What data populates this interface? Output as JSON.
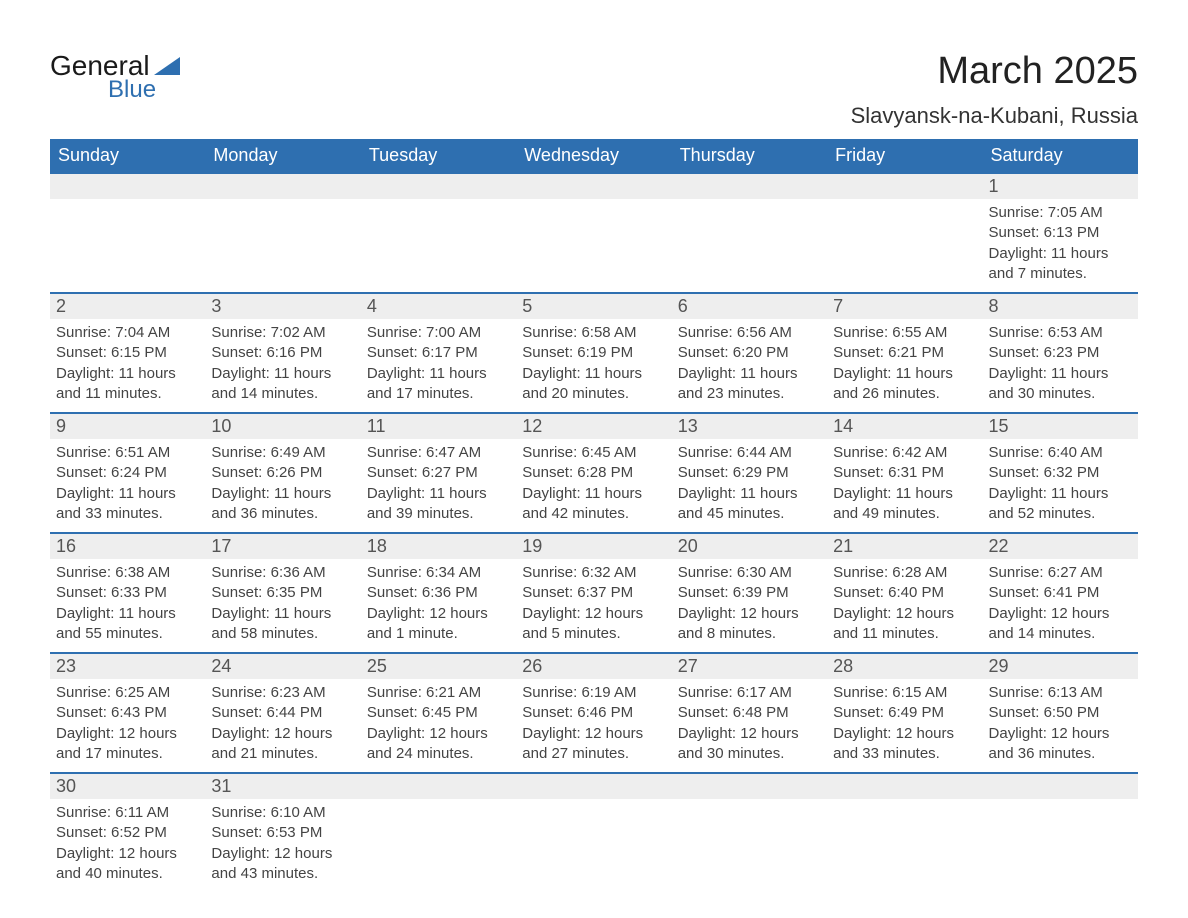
{
  "logo": {
    "text1": "General",
    "text2": "Blue",
    "accent_color": "#2e6fb0"
  },
  "title": "March 2025",
  "location": "Slavyansk-na-Kubani, Russia",
  "colors": {
    "header_bg": "#2e6fb0",
    "header_text": "#ffffff",
    "row_band": "#eeeeee",
    "border": "#2e6fb0",
    "text": "#444444",
    "background": "#ffffff"
  },
  "typography": {
    "title_fontsize": 38,
    "location_fontsize": 22,
    "header_fontsize": 18,
    "daynum_fontsize": 18,
    "body_fontsize": 15
  },
  "weekdays": [
    "Sunday",
    "Monday",
    "Tuesday",
    "Wednesday",
    "Thursday",
    "Friday",
    "Saturday"
  ],
  "weeks": [
    [
      null,
      null,
      null,
      null,
      null,
      null,
      {
        "n": "1",
        "sunrise": "Sunrise: 7:05 AM",
        "sunset": "Sunset: 6:13 PM",
        "daylight": "Daylight: 11 hours and 7 minutes."
      }
    ],
    [
      {
        "n": "2",
        "sunrise": "Sunrise: 7:04 AM",
        "sunset": "Sunset: 6:15 PM",
        "daylight": "Daylight: 11 hours and 11 minutes."
      },
      {
        "n": "3",
        "sunrise": "Sunrise: 7:02 AM",
        "sunset": "Sunset: 6:16 PM",
        "daylight": "Daylight: 11 hours and 14 minutes."
      },
      {
        "n": "4",
        "sunrise": "Sunrise: 7:00 AM",
        "sunset": "Sunset: 6:17 PM",
        "daylight": "Daylight: 11 hours and 17 minutes."
      },
      {
        "n": "5",
        "sunrise": "Sunrise: 6:58 AM",
        "sunset": "Sunset: 6:19 PM",
        "daylight": "Daylight: 11 hours and 20 minutes."
      },
      {
        "n": "6",
        "sunrise": "Sunrise: 6:56 AM",
        "sunset": "Sunset: 6:20 PM",
        "daylight": "Daylight: 11 hours and 23 minutes."
      },
      {
        "n": "7",
        "sunrise": "Sunrise: 6:55 AM",
        "sunset": "Sunset: 6:21 PM",
        "daylight": "Daylight: 11 hours and 26 minutes."
      },
      {
        "n": "8",
        "sunrise": "Sunrise: 6:53 AM",
        "sunset": "Sunset: 6:23 PM",
        "daylight": "Daylight: 11 hours and 30 minutes."
      }
    ],
    [
      {
        "n": "9",
        "sunrise": "Sunrise: 6:51 AM",
        "sunset": "Sunset: 6:24 PM",
        "daylight": "Daylight: 11 hours and 33 minutes."
      },
      {
        "n": "10",
        "sunrise": "Sunrise: 6:49 AM",
        "sunset": "Sunset: 6:26 PM",
        "daylight": "Daylight: 11 hours and 36 minutes."
      },
      {
        "n": "11",
        "sunrise": "Sunrise: 6:47 AM",
        "sunset": "Sunset: 6:27 PM",
        "daylight": "Daylight: 11 hours and 39 minutes."
      },
      {
        "n": "12",
        "sunrise": "Sunrise: 6:45 AM",
        "sunset": "Sunset: 6:28 PM",
        "daylight": "Daylight: 11 hours and 42 minutes."
      },
      {
        "n": "13",
        "sunrise": "Sunrise: 6:44 AM",
        "sunset": "Sunset: 6:29 PM",
        "daylight": "Daylight: 11 hours and 45 minutes."
      },
      {
        "n": "14",
        "sunrise": "Sunrise: 6:42 AM",
        "sunset": "Sunset: 6:31 PM",
        "daylight": "Daylight: 11 hours and 49 minutes."
      },
      {
        "n": "15",
        "sunrise": "Sunrise: 6:40 AM",
        "sunset": "Sunset: 6:32 PM",
        "daylight": "Daylight: 11 hours and 52 minutes."
      }
    ],
    [
      {
        "n": "16",
        "sunrise": "Sunrise: 6:38 AM",
        "sunset": "Sunset: 6:33 PM",
        "daylight": "Daylight: 11 hours and 55 minutes."
      },
      {
        "n": "17",
        "sunrise": "Sunrise: 6:36 AM",
        "sunset": "Sunset: 6:35 PM",
        "daylight": "Daylight: 11 hours and 58 minutes."
      },
      {
        "n": "18",
        "sunrise": "Sunrise: 6:34 AM",
        "sunset": "Sunset: 6:36 PM",
        "daylight": "Daylight: 12 hours and 1 minute."
      },
      {
        "n": "19",
        "sunrise": "Sunrise: 6:32 AM",
        "sunset": "Sunset: 6:37 PM",
        "daylight": "Daylight: 12 hours and 5 minutes."
      },
      {
        "n": "20",
        "sunrise": "Sunrise: 6:30 AM",
        "sunset": "Sunset: 6:39 PM",
        "daylight": "Daylight: 12 hours and 8 minutes."
      },
      {
        "n": "21",
        "sunrise": "Sunrise: 6:28 AM",
        "sunset": "Sunset: 6:40 PM",
        "daylight": "Daylight: 12 hours and 11 minutes."
      },
      {
        "n": "22",
        "sunrise": "Sunrise: 6:27 AM",
        "sunset": "Sunset: 6:41 PM",
        "daylight": "Daylight: 12 hours and 14 minutes."
      }
    ],
    [
      {
        "n": "23",
        "sunrise": "Sunrise: 6:25 AM",
        "sunset": "Sunset: 6:43 PM",
        "daylight": "Daylight: 12 hours and 17 minutes."
      },
      {
        "n": "24",
        "sunrise": "Sunrise: 6:23 AM",
        "sunset": "Sunset: 6:44 PM",
        "daylight": "Daylight: 12 hours and 21 minutes."
      },
      {
        "n": "25",
        "sunrise": "Sunrise: 6:21 AM",
        "sunset": "Sunset: 6:45 PM",
        "daylight": "Daylight: 12 hours and 24 minutes."
      },
      {
        "n": "26",
        "sunrise": "Sunrise: 6:19 AM",
        "sunset": "Sunset: 6:46 PM",
        "daylight": "Daylight: 12 hours and 27 minutes."
      },
      {
        "n": "27",
        "sunrise": "Sunrise: 6:17 AM",
        "sunset": "Sunset: 6:48 PM",
        "daylight": "Daylight: 12 hours and 30 minutes."
      },
      {
        "n": "28",
        "sunrise": "Sunrise: 6:15 AM",
        "sunset": "Sunset: 6:49 PM",
        "daylight": "Daylight: 12 hours and 33 minutes."
      },
      {
        "n": "29",
        "sunrise": "Sunrise: 6:13 AM",
        "sunset": "Sunset: 6:50 PM",
        "daylight": "Daylight: 12 hours and 36 minutes."
      }
    ],
    [
      {
        "n": "30",
        "sunrise": "Sunrise: 6:11 AM",
        "sunset": "Sunset: 6:52 PM",
        "daylight": "Daylight: 12 hours and 40 minutes."
      },
      {
        "n": "31",
        "sunrise": "Sunrise: 6:10 AM",
        "sunset": "Sunset: 6:53 PM",
        "daylight": "Daylight: 12 hours and 43 minutes."
      },
      null,
      null,
      null,
      null,
      null
    ]
  ]
}
